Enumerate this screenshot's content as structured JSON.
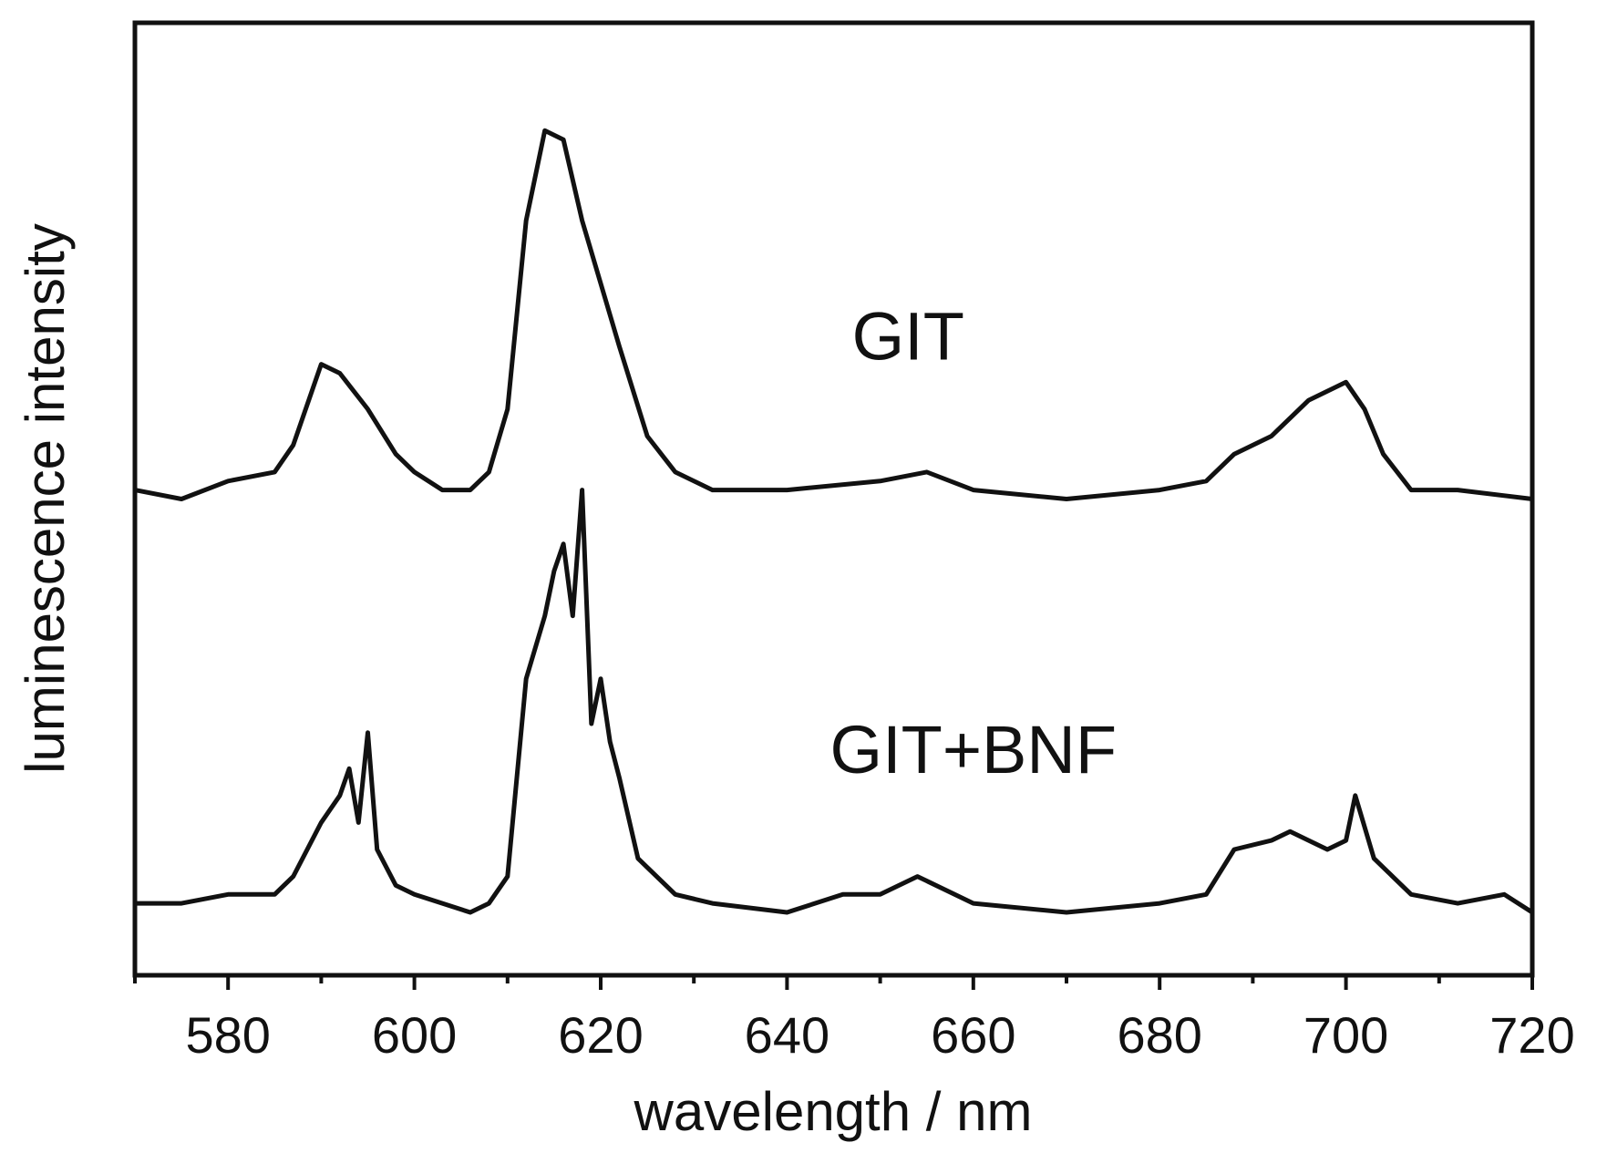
{
  "chart_data": {
    "type": "line",
    "xlabel": "wavelength / nm",
    "ylabel": "luminescence intensity",
    "xlim": [
      570,
      720
    ],
    "x_ticks_major": [
      580,
      600,
      620,
      640,
      660,
      680,
      700,
      720
    ],
    "x_ticks_minor_step": 10,
    "y_ticks": [],
    "y_scale": "relative (arbitrary units, vertically offset traces)",
    "ylim": [
      0,
      1.06
    ],
    "grid": false,
    "legend": "none",
    "line_color": "#111111",
    "series": [
      {
        "name": "GIT",
        "baseline_offset": 0.53,
        "x": [
          570,
          575,
          580,
          585,
          587,
          590,
          592,
          595,
          598,
          600,
          603,
          606,
          608,
          610,
          612,
          614,
          616,
          618,
          620,
          622,
          625,
          628,
          632,
          640,
          650,
          655,
          660,
          670,
          680,
          685,
          688,
          692,
          696,
          700,
          702,
          704,
          707,
          712,
          720
        ],
        "y": [
          0.01,
          0.0,
          0.02,
          0.03,
          0.06,
          0.15,
          0.14,
          0.1,
          0.05,
          0.03,
          0.01,
          0.01,
          0.03,
          0.1,
          0.31,
          0.41,
          0.4,
          0.31,
          0.24,
          0.17,
          0.07,
          0.03,
          0.01,
          0.01,
          0.02,
          0.03,
          0.01,
          0.0,
          0.01,
          0.02,
          0.05,
          0.07,
          0.11,
          0.13,
          0.1,
          0.05,
          0.01,
          0.01,
          0.0
        ]
      },
      {
        "name": "GIT+BNF",
        "baseline_offset": 0.07,
        "x": [
          570,
          575,
          580,
          585,
          587,
          590,
          592,
          593,
          594,
          595,
          596,
          598,
          600,
          603,
          606,
          608,
          610,
          612,
          614,
          615,
          616,
          617,
          618,
          619,
          620,
          621,
          622,
          624,
          625,
          628,
          632,
          640,
          646,
          650,
          654,
          660,
          670,
          680,
          685,
          688,
          692,
          694,
          696,
          698,
          700,
          701,
          703,
          707,
          712,
          717,
          720
        ],
        "y": [
          0.01,
          0.01,
          0.02,
          0.02,
          0.04,
          0.1,
          0.13,
          0.16,
          0.1,
          0.2,
          0.07,
          0.03,
          0.02,
          0.01,
          0.0,
          0.01,
          0.04,
          0.26,
          0.33,
          0.38,
          0.41,
          0.33,
          0.47,
          0.21,
          0.26,
          0.19,
          0.15,
          0.06,
          0.05,
          0.02,
          0.01,
          0.0,
          0.02,
          0.02,
          0.04,
          0.01,
          0.0,
          0.01,
          0.02,
          0.07,
          0.08,
          0.09,
          0.08,
          0.07,
          0.08,
          0.13,
          0.06,
          0.02,
          0.01,
          0.02,
          0.0
        ]
      }
    ],
    "annotations": [
      {
        "text": "GIT",
        "x": 653,
        "y": 0.685
      },
      {
        "text": "GIT+BNF",
        "x": 660,
        "y": 0.225
      }
    ]
  }
}
